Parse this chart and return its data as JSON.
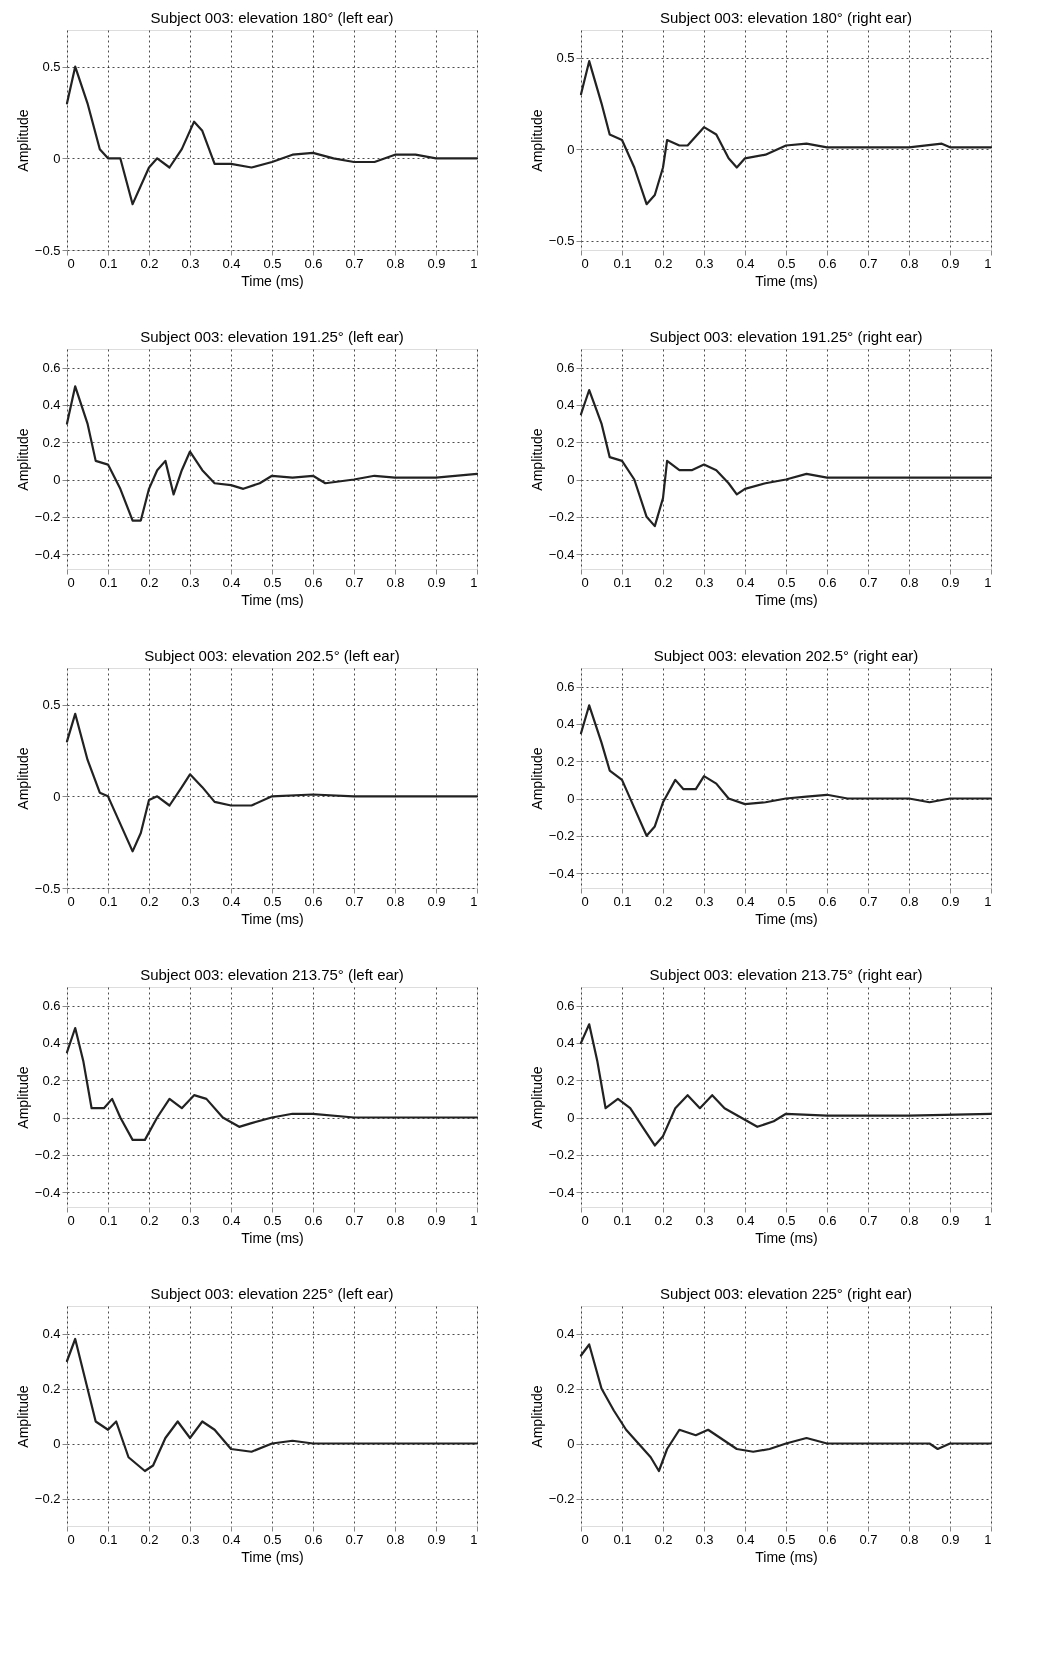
{
  "chart_data": [
    {
      "type": "line",
      "title": "Subject 003: elevation 180° (left ear)",
      "xlabel": "Time (ms)",
      "ylabel": "Amplitude",
      "xlim": [
        0,
        1
      ],
      "xticks": [
        0,
        0.1,
        0.2,
        0.3,
        0.4,
        0.5,
        0.6,
        0.7,
        0.8,
        0.9,
        1
      ],
      "ylim": [
        -0.5,
        0.7
      ],
      "yticks": [
        -0.5,
        0,
        0.5
      ],
      "grid": true,
      "line_style": "solid",
      "marker": "none",
      "series": [
        {
          "color": "#222222",
          "x": [
            0,
            0.02,
            0.05,
            0.08,
            0.1,
            0.13,
            0.16,
            0.2,
            0.22,
            0.25,
            0.28,
            0.31,
            0.33,
            0.36,
            0.4,
            0.45,
            0.5,
            0.55,
            0.6,
            0.65,
            0.7,
            0.75,
            0.8,
            0.85,
            0.9,
            1
          ],
          "values": [
            0.3,
            0.5,
            0.3,
            0.05,
            0,
            0,
            -0.25,
            -0.05,
            0,
            -0.05,
            0.05,
            0.2,
            0.15,
            -0.03,
            -0.03,
            -0.05,
            -0.02,
            0.02,
            0.03,
            0,
            -0.02,
            -0.02,
            0.02,
            0.02,
            0,
            0
          ]
        }
      ]
    },
    {
      "type": "line",
      "title": "Subject 003: elevation 180° (right ear)",
      "xlabel": "Time (ms)",
      "ylabel": "Amplitude",
      "xlim": [
        0,
        1
      ],
      "xticks": [
        0,
        0.1,
        0.2,
        0.3,
        0.4,
        0.5,
        0.6,
        0.7,
        0.8,
        0.9,
        1
      ],
      "ylim": [
        -0.55,
        0.65
      ],
      "yticks": [
        -0.5,
        0,
        0.5
      ],
      "grid": true,
      "line_style": "solid",
      "marker": "none",
      "series": [
        {
          "color": "#222222",
          "x": [
            0,
            0.02,
            0.05,
            0.07,
            0.1,
            0.13,
            0.16,
            0.18,
            0.2,
            0.21,
            0.24,
            0.26,
            0.3,
            0.33,
            0.36,
            0.38,
            0.4,
            0.45,
            0.5,
            0.55,
            0.6,
            0.8,
            0.88,
            0.9,
            1
          ],
          "values": [
            0.3,
            0.48,
            0.25,
            0.08,
            0.05,
            -0.1,
            -0.3,
            -0.25,
            -0.1,
            0.05,
            0.02,
            0.02,
            0.12,
            0.08,
            -0.05,
            -0.1,
            -0.05,
            -0.03,
            0.02,
            0.03,
            0.01,
            0.01,
            0.03,
            0.01,
            0.01
          ]
        }
      ]
    },
    {
      "type": "line",
      "title": "Subject 003: elevation 191.25° (left ear)",
      "xlabel": "Time (ms)",
      "ylabel": "Amplitude",
      "xlim": [
        0,
        1
      ],
      "xticks": [
        0,
        0.1,
        0.2,
        0.3,
        0.4,
        0.5,
        0.6,
        0.7,
        0.8,
        0.9,
        1
      ],
      "ylim": [
        -0.48,
        0.7
      ],
      "yticks": [
        -0.4,
        -0.2,
        0,
        0.2,
        0.4,
        0.6
      ],
      "grid": true,
      "line_style": "solid",
      "marker": "none",
      "series": [
        {
          "color": "#222222",
          "x": [
            0,
            0.02,
            0.05,
            0.07,
            0.1,
            0.13,
            0.16,
            0.18,
            0.2,
            0.22,
            0.24,
            0.26,
            0.28,
            0.3,
            0.33,
            0.36,
            0.4,
            0.43,
            0.47,
            0.5,
            0.55,
            0.6,
            0.63,
            0.7,
            0.75,
            0.8,
            0.9,
            1
          ],
          "values": [
            0.3,
            0.5,
            0.3,
            0.1,
            0.08,
            -0.05,
            -0.22,
            -0.22,
            -0.05,
            0.05,
            0.1,
            -0.08,
            0.05,
            0.15,
            0.05,
            -0.02,
            -0.03,
            -0.05,
            -0.02,
            0.02,
            0.01,
            0.02,
            -0.02,
            0,
            0.02,
            0.01,
            0.01,
            0.03
          ]
        }
      ]
    },
    {
      "type": "line",
      "title": "Subject 003: elevation 191.25° (right ear)",
      "xlabel": "Time (ms)",
      "ylabel": "Amplitude",
      "xlim": [
        0,
        1
      ],
      "xticks": [
        0,
        0.1,
        0.2,
        0.3,
        0.4,
        0.5,
        0.6,
        0.7,
        0.8,
        0.9,
        1
      ],
      "ylim": [
        -0.48,
        0.7
      ],
      "yticks": [
        -0.4,
        -0.2,
        0,
        0.2,
        0.4,
        0.6
      ],
      "grid": true,
      "line_style": "solid",
      "marker": "none",
      "series": [
        {
          "color": "#222222",
          "x": [
            0,
            0.02,
            0.05,
            0.07,
            0.1,
            0.13,
            0.16,
            0.18,
            0.2,
            0.21,
            0.24,
            0.27,
            0.3,
            0.33,
            0.36,
            0.38,
            0.4,
            0.45,
            0.5,
            0.55,
            0.6,
            1
          ],
          "values": [
            0.35,
            0.48,
            0.3,
            0.12,
            0.1,
            0,
            -0.2,
            -0.25,
            -0.1,
            0.1,
            0.05,
            0.05,
            0.08,
            0.05,
            -0.02,
            -0.08,
            -0.05,
            -0.02,
            0,
            0.03,
            0.01,
            0.01
          ]
        }
      ]
    },
    {
      "type": "line",
      "title": "Subject 003: elevation 202.5° (left ear)",
      "xlabel": "Time (ms)",
      "ylabel": "Amplitude",
      "xlim": [
        0,
        1
      ],
      "xticks": [
        0,
        0.1,
        0.2,
        0.3,
        0.4,
        0.5,
        0.6,
        0.7,
        0.8,
        0.9,
        1
      ],
      "ylim": [
        -0.5,
        0.7
      ],
      "yticks": [
        -0.5,
        0,
        0.5
      ],
      "grid": true,
      "line_style": "solid",
      "marker": "none",
      "series": [
        {
          "color": "#222222",
          "x": [
            0,
            0.02,
            0.05,
            0.08,
            0.1,
            0.13,
            0.16,
            0.18,
            0.2,
            0.22,
            0.25,
            0.28,
            0.3,
            0.33,
            0.36,
            0.4,
            0.45,
            0.5,
            0.6,
            0.7,
            1
          ],
          "values": [
            0.3,
            0.45,
            0.2,
            0.02,
            0,
            -0.15,
            -0.3,
            -0.2,
            -0.02,
            0,
            -0.05,
            0.05,
            0.12,
            0.05,
            -0.03,
            -0.05,
            -0.05,
            0,
            0.01,
            0,
            0
          ]
        }
      ]
    },
    {
      "type": "line",
      "title": "Subject 003: elevation 202.5° (right ear)",
      "xlabel": "Time (ms)",
      "ylabel": "Amplitude",
      "xlim": [
        0,
        1
      ],
      "xticks": [
        0,
        0.1,
        0.2,
        0.3,
        0.4,
        0.5,
        0.6,
        0.7,
        0.8,
        0.9,
        1
      ],
      "ylim": [
        -0.48,
        0.7
      ],
      "yticks": [
        -0.4,
        -0.2,
        0,
        0.2,
        0.4,
        0.6
      ],
      "grid": true,
      "line_style": "solid",
      "marker": "none",
      "series": [
        {
          "color": "#222222",
          "x": [
            0,
            0.02,
            0.05,
            0.07,
            0.1,
            0.13,
            0.16,
            0.18,
            0.2,
            0.23,
            0.25,
            0.28,
            0.3,
            0.33,
            0.36,
            0.4,
            0.45,
            0.5,
            0.55,
            0.6,
            0.65,
            0.8,
            0.85,
            0.9,
            1
          ],
          "values": [
            0.35,
            0.5,
            0.3,
            0.15,
            0.1,
            -0.05,
            -0.2,
            -0.15,
            -0.02,
            0.1,
            0.05,
            0.05,
            0.12,
            0.08,
            0,
            -0.03,
            -0.02,
            0,
            0.01,
            0.02,
            0,
            0,
            -0.02,
            0,
            0
          ]
        }
      ]
    },
    {
      "type": "line",
      "title": "Subject 003: elevation 213.75° (left ear)",
      "xlabel": "Time (ms)",
      "ylabel": "Amplitude",
      "xlim": [
        0,
        1
      ],
      "xticks": [
        0,
        0.1,
        0.2,
        0.3,
        0.4,
        0.5,
        0.6,
        0.7,
        0.8,
        0.9,
        1
      ],
      "ylim": [
        -0.48,
        0.7
      ],
      "yticks": [
        -0.4,
        -0.2,
        0,
        0.2,
        0.4,
        0.6
      ],
      "grid": true,
      "line_style": "solid",
      "marker": "none",
      "series": [
        {
          "color": "#222222",
          "x": [
            0,
            0.02,
            0.04,
            0.06,
            0.09,
            0.11,
            0.13,
            0.16,
            0.19,
            0.22,
            0.25,
            0.28,
            0.31,
            0.34,
            0.38,
            0.42,
            0.45,
            0.5,
            0.55,
            0.6,
            0.7,
            0.8,
            1
          ],
          "values": [
            0.35,
            0.48,
            0.3,
            0.05,
            0.05,
            0.1,
            0,
            -0.12,
            -0.12,
            0,
            0.1,
            0.05,
            0.12,
            0.1,
            0,
            -0.05,
            -0.03,
            0,
            0.02,
            0.02,
            0,
            0,
            0
          ]
        }
      ]
    },
    {
      "type": "line",
      "title": "Subject 003: elevation 213.75° (right ear)",
      "xlabel": "Time (ms)",
      "ylabel": "Amplitude",
      "xlim": [
        0,
        1
      ],
      "xticks": [
        0,
        0.1,
        0.2,
        0.3,
        0.4,
        0.5,
        0.6,
        0.7,
        0.8,
        0.9,
        1
      ],
      "ylim": [
        -0.48,
        0.7
      ],
      "yticks": [
        -0.4,
        -0.2,
        0,
        0.2,
        0.4,
        0.6
      ],
      "grid": true,
      "line_style": "solid",
      "marker": "none",
      "series": [
        {
          "color": "#222222",
          "x": [
            0,
            0.02,
            0.04,
            0.06,
            0.09,
            0.12,
            0.15,
            0.18,
            0.2,
            0.23,
            0.26,
            0.29,
            0.32,
            0.35,
            0.39,
            0.43,
            0.47,
            0.5,
            0.6,
            0.8,
            1
          ],
          "values": [
            0.4,
            0.5,
            0.3,
            0.05,
            0.1,
            0.05,
            -0.05,
            -0.15,
            -0.1,
            0.05,
            0.12,
            0.05,
            0.12,
            0.05,
            0,
            -0.05,
            -0.02,
            0.02,
            0.01,
            0.01,
            0.02
          ]
        }
      ]
    },
    {
      "type": "line",
      "title": "Subject 003: elevation 225° (left ear)",
      "xlabel": "Time (ms)",
      "ylabel": "Amplitude",
      "xlim": [
        0,
        1
      ],
      "xticks": [
        0,
        0.1,
        0.2,
        0.3,
        0.4,
        0.5,
        0.6,
        0.7,
        0.8,
        0.9,
        1
      ],
      "ylim": [
        -0.3,
        0.5
      ],
      "yticks": [
        -0.2,
        0,
        0.2,
        0.4
      ],
      "grid": true,
      "line_style": "solid",
      "marker": "none",
      "series": [
        {
          "color": "#222222",
          "x": [
            0,
            0.02,
            0.05,
            0.07,
            0.1,
            0.12,
            0.15,
            0.19,
            0.21,
            0.24,
            0.27,
            0.3,
            0.33,
            0.36,
            0.4,
            0.45,
            0.5,
            0.55,
            0.6,
            0.7,
            1
          ],
          "values": [
            0.3,
            0.38,
            0.2,
            0.08,
            0.05,
            0.08,
            -0.05,
            -0.1,
            -0.08,
            0.02,
            0.08,
            0.02,
            0.08,
            0.05,
            -0.02,
            -0.03,
            0,
            0.01,
            0,
            0,
            0
          ]
        }
      ]
    },
    {
      "type": "line",
      "title": "Subject 003: elevation 225° (right ear)",
      "xlabel": "Time (ms)",
      "ylabel": "Amplitude",
      "xlim": [
        0,
        1
      ],
      "xticks": [
        0,
        0.1,
        0.2,
        0.3,
        0.4,
        0.5,
        0.6,
        0.7,
        0.8,
        0.9,
        1
      ],
      "ylim": [
        -0.3,
        0.5
      ],
      "yticks": [
        -0.2,
        0,
        0.2,
        0.4
      ],
      "grid": true,
      "line_style": "solid",
      "marker": "none",
      "series": [
        {
          "color": "#222222",
          "x": [
            0,
            0.02,
            0.05,
            0.08,
            0.11,
            0.14,
            0.17,
            0.19,
            0.21,
            0.24,
            0.28,
            0.31,
            0.34,
            0.38,
            0.42,
            0.46,
            0.5,
            0.55,
            0.6,
            0.7,
            0.85,
            0.87,
            0.9,
            1
          ],
          "values": [
            0.32,
            0.36,
            0.2,
            0.12,
            0.05,
            0,
            -0.05,
            -0.1,
            -0.02,
            0.05,
            0.03,
            0.05,
            0.02,
            -0.02,
            -0.03,
            -0.02,
            0,
            0.02,
            0,
            0,
            0,
            -0.02,
            0,
            0
          ]
        }
      ]
    }
  ]
}
